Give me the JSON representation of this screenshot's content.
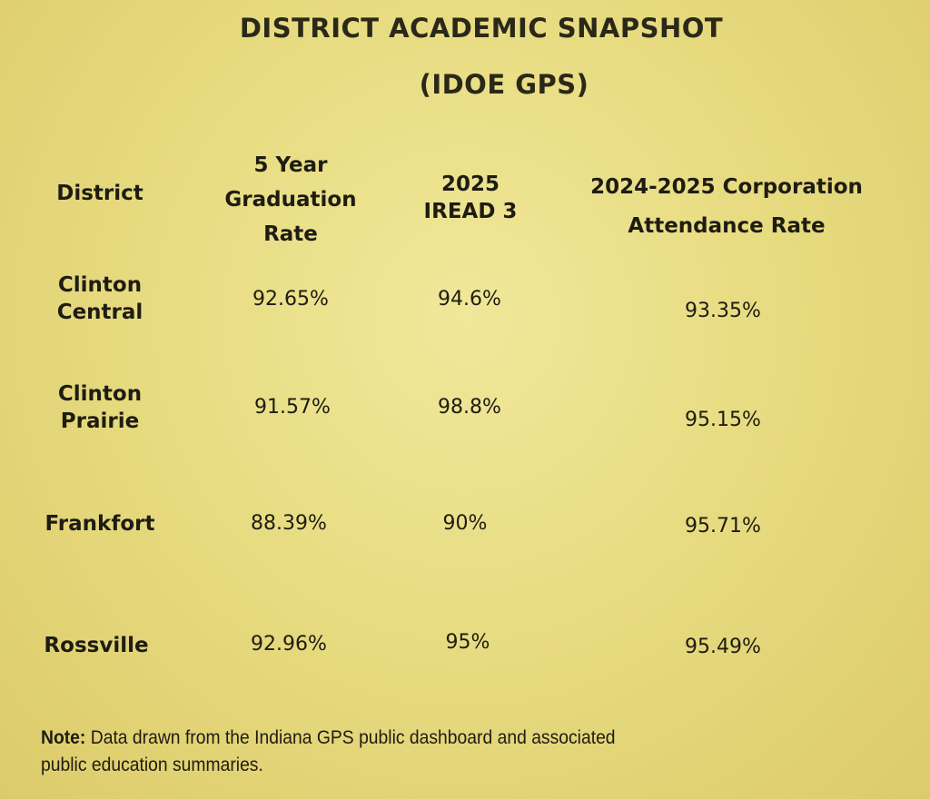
{
  "title": "DISTRICT ACADEMIC SNAPSHOT",
  "subtitle": "(IDOE GPS)",
  "columns": {
    "district": "District",
    "graduation": [
      "5 Year",
      "Graduation",
      "Rate"
    ],
    "iread": [
      "2025",
      "IREAD 3"
    ],
    "attendance": [
      "2024-2025 Corporation",
      "Attendance Rate"
    ]
  },
  "rows": [
    {
      "district": [
        "Clinton",
        "Central"
      ],
      "graduation": "92.65%",
      "iread": "94.6%",
      "attendance": "93.35%"
    },
    {
      "district": [
        "Clinton",
        "Prairie"
      ],
      "graduation": "91.57%",
      "iread": "98.8%",
      "attendance": "95.15%"
    },
    {
      "district": [
        "Frankfort"
      ],
      "graduation": "88.39%",
      "iread": "90%",
      "attendance": "95.71%"
    },
    {
      "district": [
        "Rossville"
      ],
      "graduation": "92.96%",
      "iread": "95%",
      "attendance": "95.49%"
    }
  ],
  "note": {
    "label": "Note:",
    "line1": " Data drawn from the Indiana GPS public dashboard and associated",
    "line2": "public education summaries."
  }
}
